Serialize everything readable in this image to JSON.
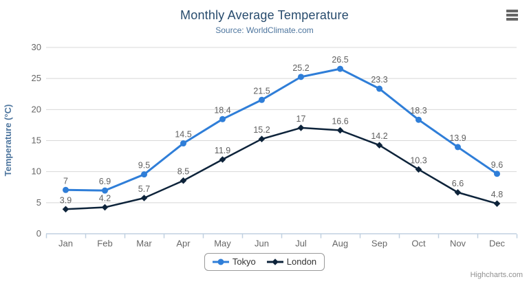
{
  "header": {
    "title": "Monthly Average Temperature",
    "subtitle": "Source: WorldClimate.com"
  },
  "menu": {
    "icon": "hamburger-icon",
    "tooltip": "Chart context menu"
  },
  "credits": "Highcharts.com",
  "colors": {
    "title": "#274b6d",
    "subtitle": "#4d759e",
    "axis_title": "#4d759e",
    "axis_label": "#666666",
    "grid_line": "#d8d8d8",
    "axis_line": "#c0d0e0",
    "data_label": "#606060",
    "legend_text": "#333333",
    "credits_text": "#909090",
    "menu_icon": "#666666",
    "tokyo": "#2f7ed8",
    "london": "#0d233a"
  },
  "chart_data": {
    "type": "line",
    "title": "Monthly Average Temperature",
    "subtitle": "Source: WorldClimate.com",
    "categories": [
      "Jan",
      "Feb",
      "Mar",
      "Apr",
      "May",
      "Jun",
      "Jul",
      "Aug",
      "Sep",
      "Oct",
      "Nov",
      "Dec"
    ],
    "series": [
      {
        "name": "Tokyo",
        "color": "#2f7ed8",
        "marker": "circle",
        "line_width": 3,
        "values": [
          7,
          6.9,
          9.5,
          14.5,
          18.4,
          21.5,
          25.2,
          26.5,
          23.3,
          18.3,
          13.9,
          9.6
        ]
      },
      {
        "name": "London",
        "color": "#0d233a",
        "marker": "diamond",
        "line_width": 2.5,
        "values": [
          3.9,
          4.2,
          5.7,
          8.5,
          11.9,
          15.2,
          17,
          16.6,
          14.2,
          10.3,
          6.6,
          4.8
        ]
      }
    ],
    "xlabel": "",
    "ylabel": "Temperature (°C)",
    "ylim": [
      0,
      30
    ],
    "ytick_interval": 5,
    "ytick_labels": [
      "0",
      "5",
      "10",
      "15",
      "20",
      "25",
      "30"
    ],
    "data_labels": true,
    "grid": true,
    "legend_position": "bottom-center"
  }
}
